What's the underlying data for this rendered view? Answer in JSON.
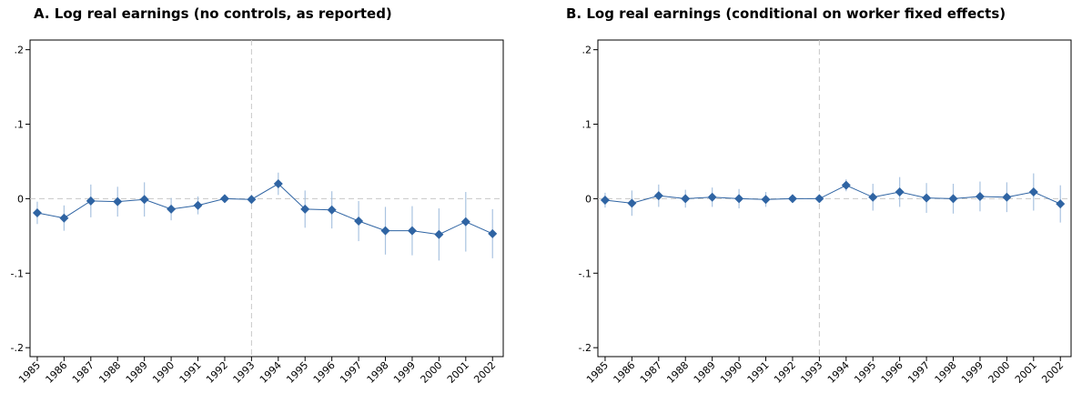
{
  "chart_data": [
    {
      "type": "line",
      "title": "A. Log real earnings (no controls, as reported)",
      "x": [
        1985,
        1986,
        1987,
        1988,
        1989,
        1990,
        1991,
        1992,
        1993,
        1994,
        1995,
        1996,
        1997,
        1998,
        1999,
        2000,
        2001,
        2002
      ],
      "values": [
        -0.019,
        -0.026,
        -0.003,
        -0.004,
        -0.001,
        -0.014,
        -0.009,
        0.0,
        -0.001,
        0.02,
        -0.014,
        -0.015,
        -0.03,
        -0.043,
        -0.043,
        -0.048,
        -0.031,
        -0.047
      ],
      "errors": [
        0.015,
        0.017,
        0.022,
        0.02,
        0.023,
        0.015,
        0.012,
        0.005,
        0,
        0.015,
        0.025,
        0.025,
        0.027,
        0.032,
        0.033,
        0.035,
        0.04,
        0.033
      ],
      "color": "#2f64a3",
      "error_color": "#a9c3e0",
      "xlim": [
        1984.73,
        2002.4
      ],
      "xticks": [
        1985,
        1986,
        1987,
        1988,
        1989,
        1990,
        1991,
        1992,
        1993,
        1994,
        1995,
        1996,
        1997,
        1998,
        1999,
        2000,
        2001,
        2002
      ],
      "ylim": [
        -0.212,
        0.213
      ],
      "yticks": [
        {
          "value": -0.2,
          "label": "-.2"
        },
        {
          "value": -0.1,
          "label": "-.1"
        },
        0,
        {
          "value": 0.1,
          "label": ".1"
        },
        {
          "value": 0.2,
          "label": ".2"
        }
      ],
      "vline": 1993,
      "hline": 0
    },
    {
      "type": "line",
      "title": "B. Log real earnings (conditional on worker fixed effects)",
      "x": [
        1985,
        1986,
        1987,
        1988,
        1989,
        1990,
        1991,
        1992,
        1993,
        1994,
        1995,
        1996,
        1997,
        1998,
        1999,
        2000,
        2001,
        2002
      ],
      "values": [
        -0.002,
        -0.006,
        0.004,
        0.0,
        0.002,
        0.0,
        -0.001,
        0.0,
        0.0,
        0.018,
        0.002,
        0.009,
        0.001,
        0.0,
        0.003,
        0.002,
        0.009,
        -0.007
      ],
      "errors": [
        0.01,
        0.017,
        0.015,
        0.012,
        0.013,
        0.013,
        0.01,
        0.005,
        0,
        0.008,
        0.018,
        0.02,
        0.02,
        0.02,
        0.02,
        0.02,
        0.025,
        0.025
      ],
      "color": "#2f64a3",
      "error_color": "#a9c3e0",
      "xlim": [
        1984.73,
        2002.4
      ],
      "xticks": [
        1985,
        1986,
        1987,
        1988,
        1989,
        1990,
        1991,
        1992,
        1993,
        1994,
        1995,
        1996,
        1997,
        1998,
        1999,
        2000,
        2001,
        2002
      ],
      "ylim": [
        -0.212,
        0.213
      ],
      "yticks": [
        {
          "value": -0.2,
          "label": "-.2"
        },
        {
          "value": -0.1,
          "label": "-.1"
        },
        0,
        {
          "value": 0.1,
          "label": ".1"
        },
        {
          "value": 0.2,
          "label": ".2"
        }
      ],
      "vline": 1993,
      "hline": 0
    }
  ]
}
